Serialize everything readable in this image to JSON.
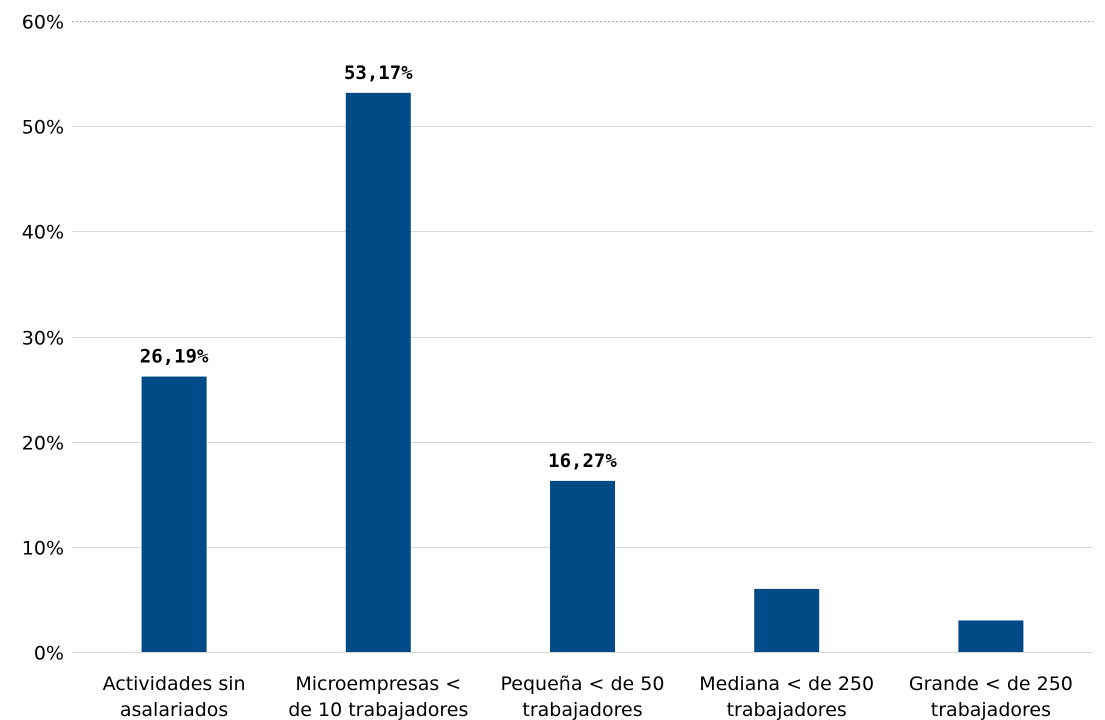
{
  "chart_data": {
    "type": "bar",
    "categories": [
      [
        "Actividades sin",
        "asalariados"
      ],
      [
        "Microempresas <",
        "de 10 trabajadores"
      ],
      [
        "Pequeña < de 50",
        "trabajadores"
      ],
      [
        "Mediana < de 250",
        "trabajadores"
      ],
      [
        "Grande < de 250",
        "trabajadores"
      ]
    ],
    "values": [
      26.19,
      53.17,
      16.27,
      6.0,
      3.0
    ],
    "data_labels": [
      "26,19%",
      "53,17%",
      "16,27%",
      "",
      ""
    ],
    "title": "",
    "xlabel": "",
    "ylabel": "",
    "ylim": [
      0,
      60
    ],
    "yticks": [
      0,
      10,
      20,
      30,
      40,
      50,
      60
    ],
    "ytick_labels": [
      "0%",
      "10%",
      "20%",
      "30%",
      "40%",
      "50%",
      "60%"
    ],
    "grid": true,
    "legend": "none",
    "bar_color": "#004b87"
  }
}
